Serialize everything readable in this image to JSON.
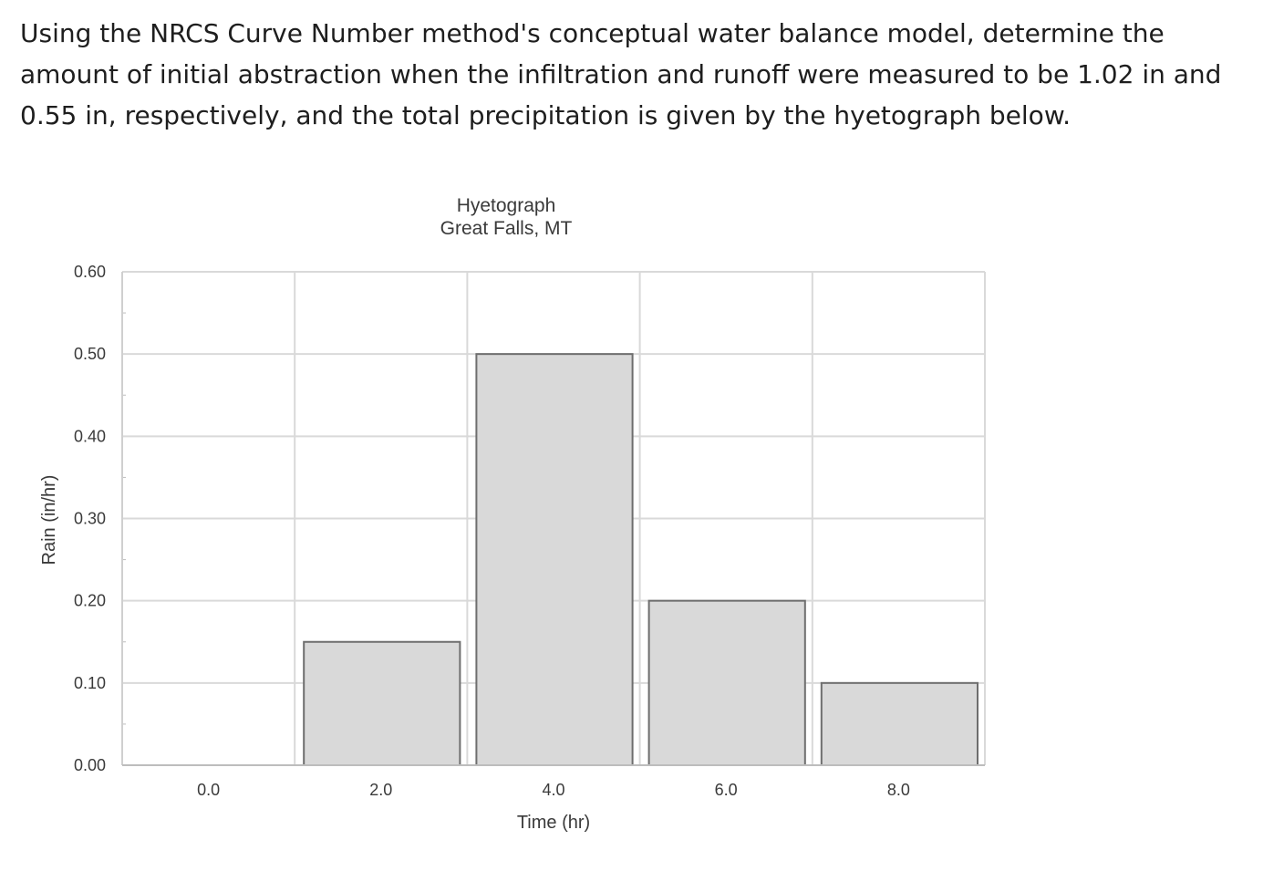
{
  "question": {
    "text": "Using the NRCS Curve Number method's conceptual water balance model, determine the amount of initial abstraction when the infiltration and runoff were measured to be 1.02 in and 0.55 in, respectively, and the total precipitation is given by the hyetograph below."
  },
  "chart_data": {
    "type": "bar",
    "title": "Hyetograph",
    "subtitle": "Great Falls, MT",
    "xlabel": "Time (hr)",
    "ylabel": "Rain (in/hr)",
    "categories": [
      "0.0",
      "2.0",
      "4.0",
      "6.0",
      "8.0"
    ],
    "values": [
      0.0,
      0.15,
      0.5,
      0.2,
      0.1
    ],
    "ylim": [
      0,
      0.6
    ],
    "y_ticks": [
      "0.00",
      "0.10",
      "0.20",
      "0.30",
      "0.40",
      "0.50",
      "0.60"
    ],
    "grid": true,
    "bar_fill": "#d9d9d9",
    "bar_stroke": "#6e6e6e",
    "grid_color": "#d9d9d9"
  }
}
